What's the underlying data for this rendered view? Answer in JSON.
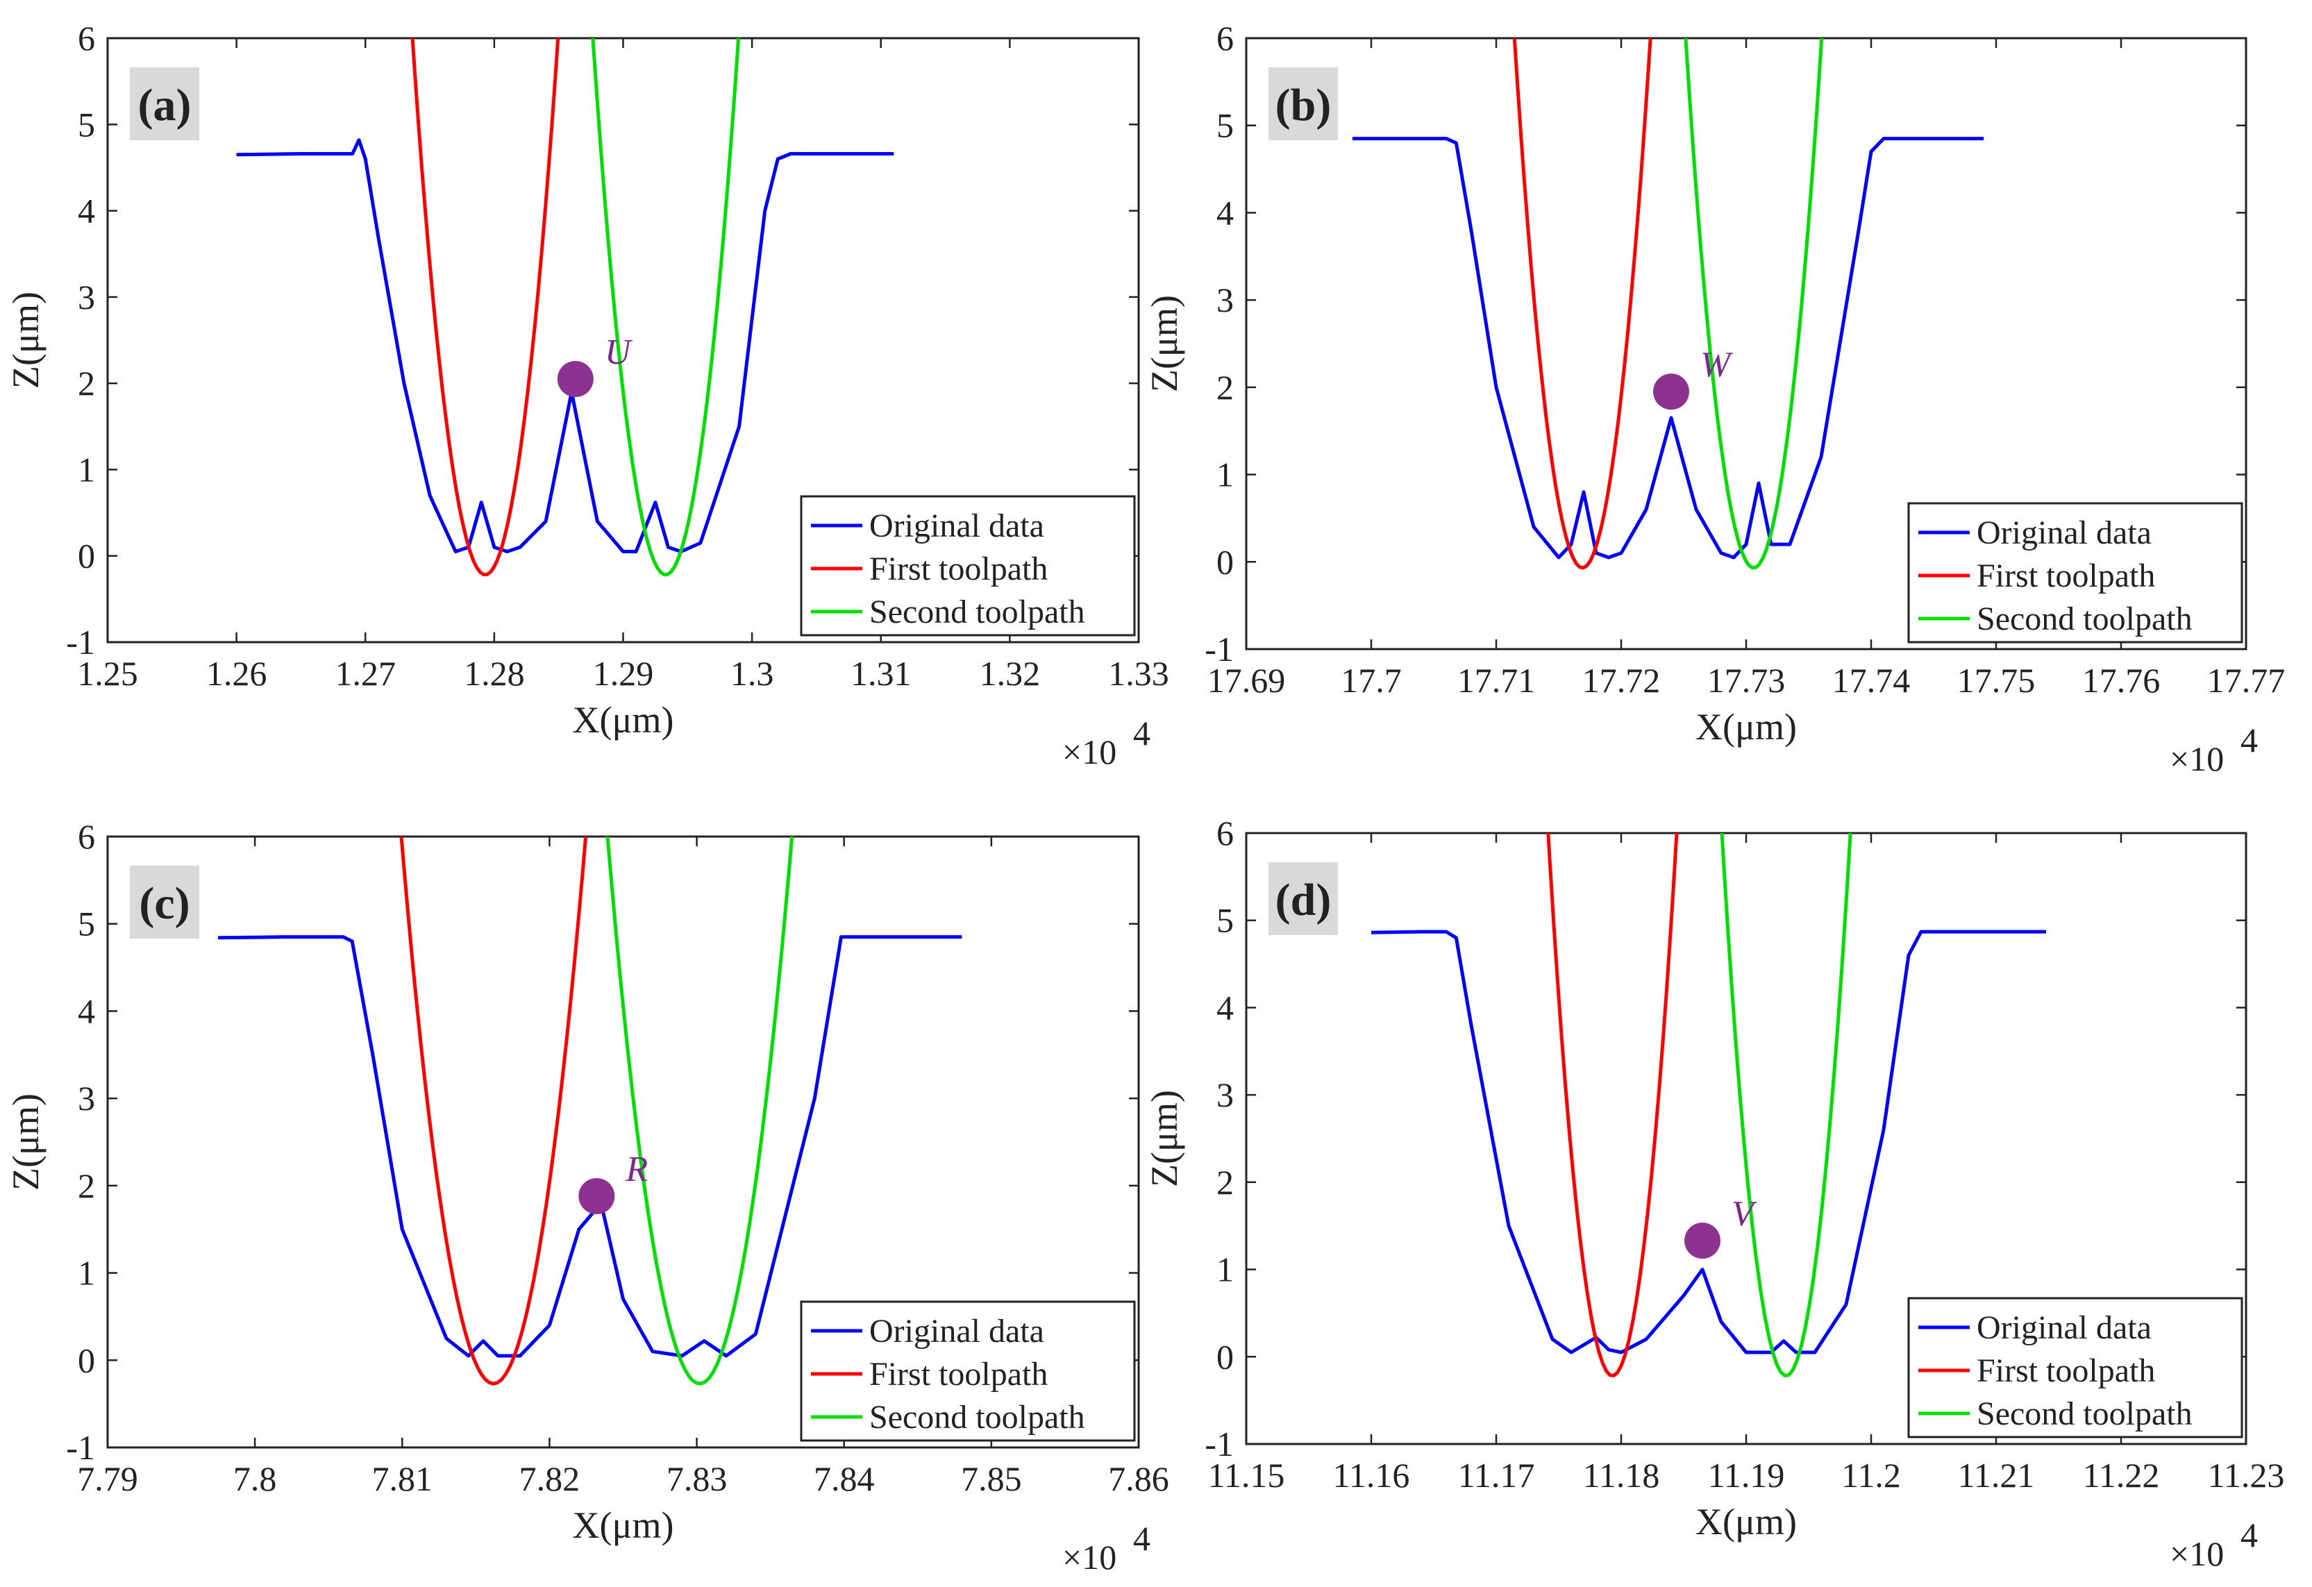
{
  "chart_data": [
    {
      "type": "line",
      "panel": "(a)",
      "xlabel": "X(μm)",
      "ylabel": "Z(μm)",
      "x_multiplier": "×10",
      "x_multiplier_exp": "4",
      "xlim": [
        1.25,
        1.33
      ],
      "ylim": [
        -1,
        6
      ],
      "xticks": [
        "1.25",
        "1.26",
        "1.27",
        "1.28",
        "1.29",
        "1.3",
        "1.31",
        "1.32",
        "1.33"
      ],
      "yticks": [
        "-1",
        "0",
        "1",
        "2",
        "3",
        "4",
        "5",
        "6"
      ],
      "legend": [
        "Original data",
        "First toolpath",
        "Second toolpath"
      ],
      "legend_position": "bottom-right",
      "series": [
        {
          "name": "Original data",
          "color": "#0000ff",
          "x": [
            1.26,
            1.265,
            1.269,
            1.2695,
            1.27,
            1.271,
            1.273,
            1.275,
            1.277,
            1.278,
            1.279,
            1.28,
            1.281,
            1.282,
            1.284,
            1.286,
            1.288,
            1.29,
            1.291,
            1.2925,
            1.2935,
            1.2945,
            1.296,
            1.299,
            1.301,
            1.302,
            1.303,
            1.311
          ],
          "y": [
            4.65,
            4.66,
            4.66,
            4.82,
            4.6,
            3.7,
            2.0,
            0.7,
            0.05,
            0.1,
            0.62,
            0.1,
            0.05,
            0.1,
            0.4,
            1.9,
            0.4,
            0.05,
            0.05,
            0.62,
            0.1,
            0.05,
            0.15,
            1.5,
            4.0,
            4.6,
            4.66,
            4.66
          ]
        },
        {
          "name": "First toolpath",
          "color": "#ff0000",
          "vertex_x": 1.2793,
          "vertex_y": -0.22,
          "k": 0.00195,
          "x_range": [
            1.2683,
            1.2895
          ]
        },
        {
          "name": "Second toolpath",
          "color": "#00e000",
          "vertex_x": 1.2933,
          "vertex_y": -0.22,
          "k": 0.00195,
          "x_range": [
            1.2822,
            1.3042
          ]
        }
      ],
      "marker": {
        "label": "U",
        "x": 1.2863,
        "y": 2.05,
        "color": "#8e3291"
      }
    },
    {
      "type": "line",
      "panel": "(b)",
      "xlabel": "X(μm)",
      "ylabel": "Z(μm)",
      "x_multiplier": "×10",
      "x_multiplier_exp": "4",
      "xlim": [
        17.69,
        17.77
      ],
      "ylim": [
        -1,
        6
      ],
      "xticks": [
        "17.69",
        "17.7",
        "17.71",
        "17.72",
        "17.73",
        "17.74",
        "17.75",
        "17.76",
        "17.77"
      ],
      "yticks": [
        "-1",
        "0",
        "1",
        "2",
        "3",
        "4",
        "5",
        "6"
      ],
      "legend": [
        "Original data",
        "First toolpath",
        "Second toolpath"
      ],
      "legend_position": "bottom-right",
      "series": [
        {
          "name": "Original data",
          "color": "#0000ff",
          "x": [
            17.6985,
            17.702,
            17.706,
            17.7068,
            17.708,
            17.71,
            17.713,
            17.715,
            17.716,
            17.717,
            17.718,
            17.719,
            17.72,
            17.722,
            17.724,
            17.726,
            17.728,
            17.729,
            17.73,
            17.731,
            17.732,
            17.7335,
            17.736,
            17.739,
            17.74,
            17.741,
            17.749
          ],
          "y": [
            4.85,
            4.85,
            4.85,
            4.8,
            3.8,
            2.0,
            0.4,
            0.05,
            0.2,
            0.8,
            0.1,
            0.05,
            0.1,
            0.6,
            1.65,
            0.6,
            0.1,
            0.05,
            0.2,
            0.9,
            0.2,
            0.2,
            1.2,
            3.8,
            4.7,
            4.85,
            4.85
          ]
        },
        {
          "name": "First toolpath",
          "color": "#ff0000",
          "vertex_x": 17.7169,
          "vertex_y": -0.07,
          "k": 0.00205,
          "x_range": [
            17.7062,
            17.7283
          ]
        },
        {
          "name": "Second toolpath",
          "color": "#00e000",
          "vertex_x": 17.7306,
          "vertex_y": -0.07,
          "k": 0.00205,
          "x_range": [
            17.7198,
            17.7423
          ]
        }
      ],
      "marker": {
        "label": "W",
        "x": 17.724,
        "y": 1.95,
        "color": "#8e3291"
      }
    },
    {
      "type": "line",
      "panel": "(c)",
      "xlabel": "X(μm)",
      "ylabel": "Z(μm)",
      "x_multiplier": "×10",
      "x_multiplier_exp": "4",
      "xlim": [
        7.79,
        7.86
      ],
      "ylim": [
        -1,
        6
      ],
      "xticks": [
        "7.79",
        "7.8",
        "7.81",
        "7.82",
        "7.83",
        "7.84",
        "7.85",
        "7.86"
      ],
      "yticks": [
        "-1",
        "0",
        "1",
        "2",
        "3",
        "4",
        "5",
        "6"
      ],
      "legend": [
        "Original data",
        "First toolpath",
        "Second toolpath"
      ],
      "legend_position": "bottom-right",
      "series": [
        {
          "name": "Original data",
          "color": "#0000ff",
          "x": [
            7.7975,
            7.802,
            7.806,
            7.8066,
            7.808,
            7.81,
            7.813,
            7.8145,
            7.8155,
            7.8165,
            7.818,
            7.82,
            7.822,
            7.8235,
            7.825,
            7.827,
            7.829,
            7.8305,
            7.832,
            7.834,
            7.838,
            7.8398,
            7.841,
            7.848
          ],
          "y": [
            4.84,
            4.85,
            4.85,
            4.8,
            3.5,
            1.5,
            0.25,
            0.05,
            0.22,
            0.05,
            0.05,
            0.4,
            1.5,
            1.8,
            0.7,
            0.1,
            0.05,
            0.22,
            0.05,
            0.3,
            3.0,
            4.85,
            4.85,
            4.85
          ]
        },
        {
          "name": "First toolpath",
          "color": "#ff0000",
          "vertex_x": 7.8162,
          "vertex_y": -0.27,
          "k": 0.0016,
          "x_range": [
            7.8052,
            7.8272
          ]
        },
        {
          "name": "Second toolpath",
          "color": "#00e000",
          "vertex_x": 7.8302,
          "vertex_y": -0.27,
          "k": 0.0016,
          "x_range": [
            7.819,
            7.841
          ]
        }
      ],
      "marker": {
        "label": "R",
        "x": 7.8232,
        "y": 1.88,
        "color": "#8e3291"
      }
    },
    {
      "type": "line",
      "panel": "(d)",
      "xlabel": "X(μm)",
      "ylabel": "Z(μm)",
      "x_multiplier": "×10",
      "x_multiplier_exp": "4",
      "xlim": [
        11.15,
        11.23
      ],
      "ylim": [
        -1,
        6
      ],
      "xticks": [
        "11.15",
        "11.16",
        "11.17",
        "11.18",
        "11.19",
        "11.2",
        "11.21",
        "11.22",
        "11.23"
      ],
      "yticks": [
        "-1",
        "0",
        "1",
        "2",
        "3",
        "4",
        "5",
        "6"
      ],
      "legend": [
        "Original data",
        "First toolpath",
        "Second toolpath"
      ],
      "legend_position": "bottom-right",
      "series": [
        {
          "name": "Original data",
          "color": "#0000ff",
          "x": [
            11.16,
            11.164,
            11.166,
            11.1668,
            11.168,
            11.171,
            11.1745,
            11.176,
            11.178,
            11.179,
            11.18,
            11.182,
            11.185,
            11.1865,
            11.188,
            11.19,
            11.192,
            11.193,
            11.194,
            11.1955,
            11.198,
            11.201,
            11.203,
            11.204,
            11.214
          ],
          "y": [
            4.86,
            4.87,
            4.87,
            4.8,
            3.8,
            1.5,
            0.2,
            0.05,
            0.22,
            0.08,
            0.05,
            0.2,
            0.7,
            1.0,
            0.4,
            0.05,
            0.05,
            0.18,
            0.05,
            0.05,
            0.6,
            2.6,
            4.6,
            4.87,
            4.87
          ]
        },
        {
          "name": "First toolpath",
          "color": "#ff0000",
          "vertex_x": 11.1793,
          "vertex_y": -0.22,
          "k": 0.00235,
          "x_range": [
            11.1665,
            11.1905
          ]
        },
        {
          "name": "Second toolpath",
          "color": "#00e000",
          "vertex_x": 11.1932,
          "vertex_y": -0.22,
          "k": 0.00235,
          "x_range": [
            11.18,
            11.2062
          ]
        }
      ],
      "marker": {
        "label": "V",
        "x": 11.1865,
        "y": 1.33,
        "color": "#8e3291"
      }
    }
  ]
}
